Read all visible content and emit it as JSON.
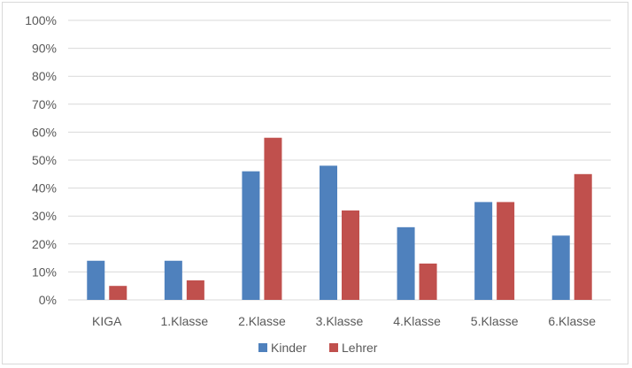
{
  "chart_data": {
    "type": "bar",
    "categories": [
      "KIGA",
      "1.Klasse",
      "2.Klasse",
      "3.Klasse",
      "4.Klasse",
      "5.Klasse",
      "6.Klasse"
    ],
    "series": [
      {
        "name": "Kinder",
        "color": "#4f81bd",
        "values": [
          14,
          14,
          46,
          48,
          26,
          35,
          23
        ]
      },
      {
        "name": "Lehrer",
        "color": "#c0504d",
        "values": [
          5,
          7,
          58,
          32,
          13,
          35,
          45
        ]
      }
    ],
    "ylim": [
      0,
      100
    ],
    "ytick_step": 10,
    "yticks": [
      "0%",
      "10%",
      "20%",
      "30%",
      "40%",
      "50%",
      "60%",
      "70%",
      "80%",
      "90%",
      "100%"
    ],
    "grid": true,
    "legend_position": "bottom",
    "gridline_color": "#d9d9d9"
  }
}
